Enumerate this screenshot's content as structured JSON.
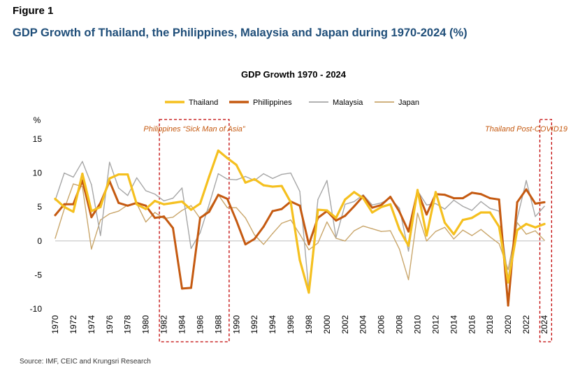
{
  "figure_label": "Figure 1",
  "figure_title": "GDP Growth of Thailand, the Philippines, Malaysia and Japan during 1970-2024 (%)",
  "source": "Source: IMF, CEIC and Krungsri Research",
  "chart_data": {
    "type": "line",
    "title": "GDP Growth 1970 - 2024",
    "ylabel": "%",
    "ylim": [
      -10,
      15
    ],
    "yticks": [
      15,
      10,
      5,
      0,
      -5,
      -10
    ],
    "x": [
      1970,
      1971,
      1972,
      1973,
      1974,
      1975,
      1976,
      1977,
      1978,
      1979,
      1980,
      1981,
      1982,
      1983,
      1984,
      1985,
      1986,
      1987,
      1988,
      1989,
      1990,
      1991,
      1992,
      1993,
      1994,
      1995,
      1996,
      1997,
      1998,
      1999,
      2000,
      2001,
      2002,
      2003,
      2004,
      2005,
      2006,
      2007,
      2008,
      2009,
      2010,
      2011,
      2012,
      2013,
      2014,
      2015,
      2016,
      2017,
      2018,
      2019,
      2020,
      2021,
      2022,
      2023,
      2024
    ],
    "xticks": [
      "1970",
      "1972",
      "1974",
      "1976",
      "1978",
      "1980",
      "1982",
      "1984",
      "1986",
      "1988",
      "1990",
      "1992",
      "1994",
      "1996",
      "1998",
      "2000",
      "2002",
      "2004",
      "2006",
      "2008",
      "2010",
      "2012",
      "2014",
      "2016",
      "2018",
      "2020",
      "2022",
      "2024"
    ],
    "grid": false,
    "legend_position": "top",
    "series": [
      {
        "name": "Thailand",
        "color": "#f5c01f",
        "values": [
          6.2,
          5.0,
          4.3,
          9.9,
          4.4,
          5.0,
          9.2,
          9.8,
          9.8,
          5.4,
          4.7,
          5.9,
          5.4,
          5.6,
          5.8,
          4.6,
          5.5,
          9.5,
          13.3,
          12.2,
          11.2,
          8.6,
          9.1,
          8.2,
          8.0,
          8.1,
          5.7,
          -2.8,
          -7.6,
          4.6,
          4.5,
          3.4,
          6.1,
          7.2,
          6.3,
          4.2,
          5.0,
          5.4,
          1.7,
          -0.7,
          7.5,
          0.8,
          7.2,
          2.7,
          1.0,
          3.1,
          3.4,
          4.2,
          4.2,
          2.1,
          -6.1,
          1.6,
          2.5,
          2.0,
          2.5
        ]
      },
      {
        "name": "Phillippines",
        "color": "#c55a11",
        "values": [
          3.8,
          5.4,
          5.4,
          8.9,
          3.5,
          5.6,
          8.8,
          5.6,
          5.2,
          5.6,
          5.2,
          3.4,
          3.6,
          1.9,
          -7.0,
          -6.9,
          3.4,
          4.3,
          6.8,
          6.2,
          3.0,
          -0.5,
          0.3,
          2.1,
          4.4,
          4.7,
          5.8,
          5.2,
          -0.5,
          3.4,
          4.4,
          3.0,
          3.7,
          5.1,
          6.6,
          4.9,
          5.3,
          6.5,
          4.3,
          1.4,
          7.3,
          3.9,
          6.9,
          6.8,
          6.3,
          6.3,
          7.1,
          6.9,
          6.3,
          6.1,
          -9.5,
          5.7,
          7.6,
          5.5,
          5.7
        ]
      },
      {
        "name": "Malaysia",
        "color": "#a6a6a6",
        "values": [
          6.0,
          10.0,
          9.4,
          11.7,
          8.3,
          0.8,
          11.6,
          7.8,
          6.7,
          9.3,
          7.4,
          6.9,
          5.9,
          6.3,
          7.8,
          -1.1,
          1.2,
          5.4,
          9.9,
          9.1,
          9.0,
          9.5,
          8.9,
          9.9,
          9.2,
          9.8,
          10.0,
          7.3,
          -7.4,
          6.1,
          8.9,
          0.5,
          5.4,
          5.8,
          6.8,
          5.3,
          5.6,
          6.3,
          4.8,
          -1.5,
          7.4,
          5.3,
          5.5,
          4.7,
          6.0,
          5.1,
          4.5,
          5.8,
          4.8,
          4.4,
          -5.5,
          3.3,
          8.9,
          3.6,
          5.1
        ]
      },
      {
        "name": "Japan",
        "color": "#c9a66b",
        "values": [
          0.4,
          4.7,
          8.4,
          8.0,
          -1.2,
          3.1,
          4.0,
          4.4,
          5.3,
          5.5,
          2.8,
          4.2,
          3.3,
          3.5,
          4.5,
          5.2,
          3.3,
          4.7,
          6.8,
          4.9,
          4.9,
          3.4,
          0.9,
          -0.5,
          1.1,
          2.6,
          3.1,
          1.0,
          -1.3,
          -0.3,
          2.8,
          0.4,
          0.0,
          1.5,
          2.2,
          1.8,
          1.4,
          1.5,
          -1.2,
          -5.7,
          4.1,
          0.0,
          1.4,
          2.0,
          0.3,
          1.6,
          0.8,
          1.7,
          0.6,
          -0.4,
          -4.2,
          2.7,
          1.0,
          1.5,
          0.1
        ]
      }
    ],
    "annotations": [
      {
        "label": "Philippines “Sick Man of Asia”",
        "x_from": 1981.5,
        "x_to": 1989.2
      },
      {
        "label": "Thailand Post-COVID19",
        "x_from": 2023.5,
        "x_to": 2024.8
      }
    ]
  }
}
